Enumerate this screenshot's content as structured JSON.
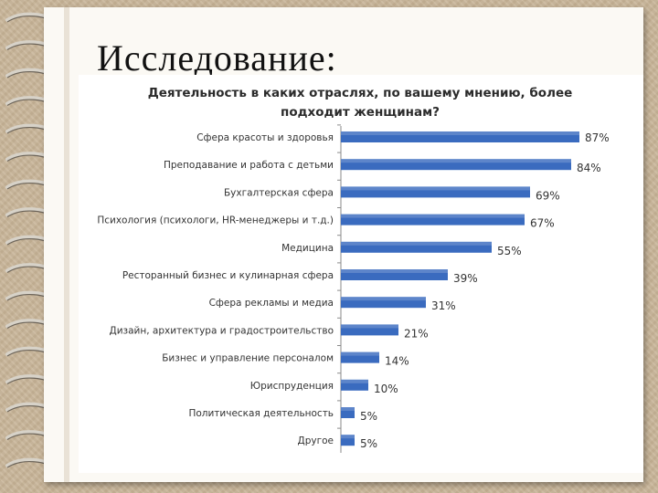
{
  "slide": {
    "title": "Исследование:"
  },
  "chart_data": {
    "type": "bar",
    "orientation": "horizontal",
    "title": "Деятельность в каких отраслях, по вашему мнению, более подходит женщинам?",
    "title_lines": [
      "Деятельность в каких отраслях, по вашему мнению, более",
      "подходит женщинам?"
    ],
    "categories": [
      "Сфера красоты и здоровья",
      "Преподавание и работа с детьми",
      "Бухгалтерская сфера",
      "Психология (психологи, HR-менеджеры и т.д.)",
      "Медицина",
      "Ресторанный бизнес и кулинарная сфера",
      "Сфера рекламы и медиа",
      "Дизайн, архитектура и градостроительство",
      "Бизнес и управление персоналом",
      "Юриспруденция",
      "Политическая деятельность",
      "Другое"
    ],
    "values": [
      87,
      84,
      69,
      67,
      55,
      39,
      31,
      21,
      14,
      10,
      5,
      5
    ],
    "value_labels": [
      "87%",
      "84%",
      "69%",
      "67%",
      "55%",
      "39%",
      "31%",
      "21%",
      "14%",
      "10%",
      "5%",
      "5%"
    ],
    "unit": "%",
    "xlim": [
      0,
      100
    ],
    "grid": false,
    "bar_color": "#3a6bbf"
  }
}
